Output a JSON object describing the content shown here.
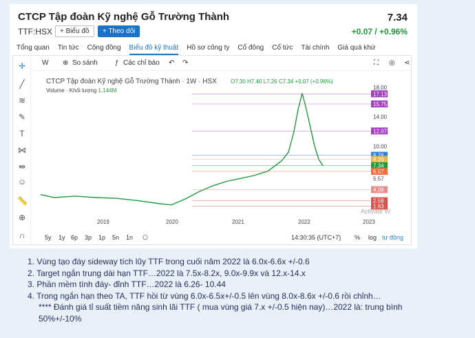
{
  "header": {
    "title": "CTCP Tập đoàn Kỹ nghệ Gỗ Trường Thành",
    "price": "7.34",
    "ticker": "TTF:HSX",
    "chart_button": "+ Biểu đồ",
    "follow_button": "+ Theo dõi",
    "change": "+0.07 / +0.96%"
  },
  "tabs": [
    "Tổng quan",
    "Tin tức",
    "Cộng đồng",
    "Biểu đồ kỹ thuật",
    "Hồ sơ công ty",
    "Cổ đông",
    "Cổ tức",
    "Tài chính",
    "Giá quá khứ"
  ],
  "toolbar": {
    "interval": "W",
    "compare": "So sánh",
    "indicators": "Các chỉ báo"
  },
  "chart_info": {
    "title": "CTCP Tập đoàn Kỹ nghệ Gỗ Trường Thành",
    "interval": "1W",
    "exchange": "HSX",
    "ohlc": "O7.30  H7.40  L7.26  C7.34  +0.07 (+0.96%)",
    "volume_label": "Volume · Khối lượng",
    "volume_value": "1.144M"
  },
  "price_axis": [
    "18.00",
    "17.13",
    "15.75",
    "14.00",
    "12.07",
    "10.00",
    "8.76",
    "8.20",
    "7.34",
    "6.57",
    "5.57",
    "4.08",
    "2.58",
    "1.83"
  ],
  "price_tag_colors": {
    "17.13": "#a33fbf",
    "15.75": "#a33fbf",
    "12.07": "#a33fbf",
    "8.76": "#2e7fd6",
    "8.20": "#e5b74a",
    "7.34": "#1e9a3b",
    "6.57": "#ef6c3d",
    "4.08": "#e88a8a",
    "2.58": "#d9534f",
    "1.83": "#d9534f"
  },
  "time_axis": [
    "2019",
    "2020",
    "2021",
    "2022",
    "2023"
  ],
  "range_buttons": [
    "5y",
    "1y",
    "6p",
    "3p",
    "1p",
    "5n",
    "1n"
  ],
  "clock": "14:30:35 (UTC+7)",
  "scale_options": [
    "%",
    "log",
    "tự động"
  ],
  "watermark": "Activate W",
  "notes": [
    "1. Vùng tạo đáy sideway tích lũy TTF trong cuối năm 2022 là 6.0x-6.6x +/-0.6",
    "2. Target ngắn trung dài hạn TTF…2022 là 7.5x-8.2x, 9.0x-9.9x và 12.x-14.x",
    "3. Phần mềm tính đáy- đỉnh TTF…2022 là 6.26- 10.44",
    "4. Trong ngắn hạn theo TA, TTF hồi từ vùng 6.0x-6.5x+/-0.5 lên vùng 8.0x-8.6x +/-0.6 rồi chỉnh…",
    "**** Đánh giá tỉ suất tiềm năng sinh lãi TTF ( mua vùng giá 7.x +/-0.5 hiện nay)…2022 là: trung bình",
    "50%+/-10%"
  ]
}
